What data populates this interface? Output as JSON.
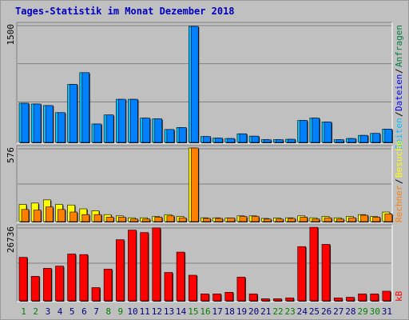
{
  "title": "Tages-Statistik im Monat Dezember 2018",
  "chart_data": [
    {
      "type": "bar",
      "panel": "top",
      "ymax_label": "1500",
      "ylim": [
        0,
        1500
      ],
      "categories": [
        "1",
        "2",
        "3",
        "4",
        "5",
        "6",
        "7",
        "8",
        "9",
        "10",
        "11",
        "12",
        "13",
        "14",
        "15",
        "16",
        "17",
        "18",
        "19",
        "20",
        "21",
        "22",
        "23",
        "24",
        "25",
        "26",
        "27",
        "28",
        "29",
        "30",
        "31"
      ],
      "series": [
        {
          "name": "Seiten",
          "color": "#00c0ff",
          "values": [
            500,
            490,
            470,
            380,
            740,
            890,
            235,
            350,
            550,
            550,
            310,
            300,
            165,
            190,
            1480,
            75,
            55,
            50,
            110,
            80,
            35,
            35,
            40,
            280,
            310,
            260,
            35,
            50,
            90,
            115,
            170
          ]
        },
        {
          "name": "Dateien",
          "color": "#0080ff",
          "values": [
            500,
            490,
            470,
            380,
            740,
            890,
            235,
            350,
            550,
            550,
            310,
            300,
            165,
            190,
            1480,
            75,
            55,
            50,
            110,
            80,
            35,
            35,
            40,
            280,
            310,
            260,
            35,
            50,
            90,
            115,
            170
          ]
        }
      ],
      "grid": true
    },
    {
      "type": "bar",
      "panel": "middle",
      "ymax_label": "576",
      "ylim": [
        0,
        576
      ],
      "categories": [
        "1",
        "2",
        "3",
        "4",
        "5",
        "6",
        "7",
        "8",
        "9",
        "10",
        "11",
        "12",
        "13",
        "14",
        "15",
        "16",
        "17",
        "18",
        "19",
        "20",
        "21",
        "22",
        "23",
        "24",
        "25",
        "26",
        "27",
        "28",
        "29",
        "30",
        "31"
      ],
      "series": [
        {
          "name": "Besuche",
          "color": "#ffff00",
          "values": [
            135,
            145,
            170,
            135,
            130,
            100,
            85,
            55,
            45,
            30,
            30,
            40,
            55,
            40,
            576,
            30,
            30,
            28,
            45,
            45,
            25,
            28,
            30,
            45,
            30,
            40,
            30,
            40,
            55,
            40,
            75
          ]
        },
        {
          "name": "Rechner",
          "color": "#ff8000",
          "values": [
            95,
            90,
            115,
            95,
            75,
            55,
            55,
            35,
            35,
            20,
            20,
            35,
            45,
            30,
            576,
            25,
            25,
            28,
            40,
            40,
            20,
            20,
            25,
            35,
            20,
            30,
            20,
            30,
            50,
            35,
            60
          ]
        }
      ],
      "grid": true
    },
    {
      "type": "bar",
      "panel": "bottom",
      "ymax_label": "26736",
      "ylim": [
        0,
        26736
      ],
      "categories": [
        "1",
        "2",
        "3",
        "4",
        "5",
        "6",
        "7",
        "8",
        "9",
        "10",
        "11",
        "12",
        "13",
        "14",
        "15",
        "16",
        "17",
        "18",
        "19",
        "20",
        "21",
        "22",
        "23",
        "24",
        "25",
        "26",
        "27",
        "28",
        "29",
        "30",
        "31"
      ],
      "series": [
        {
          "name": "kB",
          "color": "#ff0000",
          "values": [
            15800,
            8900,
            11800,
            12600,
            17000,
            16800,
            4800,
            11500,
            22200,
            25700,
            24800,
            26500,
            10300,
            17700,
            9300,
            2500,
            2500,
            3100,
            8600,
            2500,
            750,
            750,
            1050,
            19700,
            26700,
            20500,
            1050,
            1300,
            2500,
            2500,
            3500
          ]
        }
      ],
      "grid": true
    }
  ],
  "right_legend": {
    "anfragen": "Anfragen",
    "dateien": "Dateien",
    "seiten": "Seiten",
    "besuche": "Besuche",
    "rechner": "Rechner",
    "kb": "kB",
    "sep": "/"
  },
  "colors": {
    "day_label_default": "#000080",
    "day_label_weekend": "#008000",
    "anfragen_label": "#008040",
    "dateien_label": "#0000ff",
    "seiten_label": "#00c0ff",
    "besuche_label": "#ffff00",
    "rechner_label": "#ff8000",
    "kb_label": "#ff0000"
  },
  "weekend_days": [
    "1",
    "2",
    "8",
    "9",
    "15",
    "16",
    "22",
    "23",
    "29",
    "30"
  ]
}
